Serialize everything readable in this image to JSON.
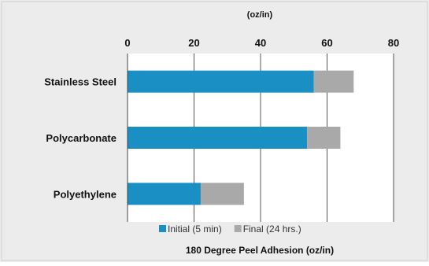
{
  "chart_data": {
    "type": "bar",
    "orientation": "horizontal",
    "stacked": true,
    "categories": [
      "Stainless Steel",
      "Polycarbonate",
      "Polyethylene"
    ],
    "series": [
      {
        "name": "Initial (5 min)",
        "values": [
          56,
          54,
          22
        ],
        "color": "#1a8fc4"
      },
      {
        "name": "Final (24 hrs.)",
        "values": [
          12,
          10,
          13
        ],
        "color": "#a9a9a9"
      }
    ],
    "xlabel": "180 Degree Peel Adhesion  (oz/in)",
    "top_axis_label": "(oz/in)",
    "xlim": [
      0,
      80
    ],
    "xticks": [
      0,
      20,
      40,
      60,
      80
    ],
    "xtick_labels": [
      "0",
      "20",
      "40",
      "60",
      "80"
    ],
    "grid": true,
    "legend_position": "bottom",
    "background_color": "#ececec",
    "plot_background_color": "#ffffff"
  }
}
